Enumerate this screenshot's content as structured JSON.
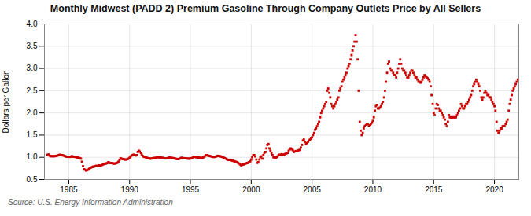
{
  "chart_data": {
    "type": "scatter",
    "title": "Monthly Midwest (PADD 2) Premium Gasoline Through Company Outlets Price by All Sellers",
    "ylabel": "Dollars per Gallon",
    "caption": "Source: U.S. Energy Information Administration",
    "color": "#cc0000",
    "marker": "square",
    "grid": true,
    "xlim": [
      1983,
      2022
    ],
    "ylim": [
      0.5,
      4.0
    ],
    "xticks": [
      1985,
      1990,
      1995,
      2000,
      2005,
      2010,
      2015,
      2020
    ],
    "yticks": [
      0.5,
      {
        "value": 1.0,
        "label": "1.0"
      },
      1.5,
      {
        "value": 2.0,
        "label": "2.0"
      },
      2.5,
      {
        "value": 3.0,
        "label": "3.0"
      },
      3.5,
      {
        "value": 4.0,
        "label": "4.0"
      }
    ],
    "x": [
      1983.25,
      1983.33,
      1983.42,
      1983.5,
      1983.58,
      1983.67,
      1983.75,
      1983.83,
      1983.92,
      1984.0,
      1984.08,
      1984.17,
      1984.25,
      1984.33,
      1984.42,
      1984.5,
      1984.58,
      1984.67,
      1984.75,
      1984.83,
      1984.92,
      1985.0,
      1985.08,
      1985.17,
      1985.25,
      1985.33,
      1985.42,
      1985.5,
      1985.58,
      1985.67,
      1985.75,
      1985.83,
      1985.92,
      1986.0,
      1986.08,
      1986.17,
      1986.25,
      1986.33,
      1986.42,
      1986.5,
      1986.58,
      1986.67,
      1986.75,
      1986.83,
      1986.92,
      1987.0,
      1987.08,
      1987.17,
      1987.25,
      1987.33,
      1987.42,
      1987.5,
      1987.58,
      1987.67,
      1987.75,
      1987.83,
      1987.92,
      1988.0,
      1988.08,
      1988.17,
      1988.25,
      1988.33,
      1988.42,
      1988.5,
      1988.58,
      1988.67,
      1988.75,
      1988.83,
      1988.92,
      1989.0,
      1989.08,
      1989.17,
      1989.25,
      1989.33,
      1989.42,
      1989.5,
      1989.58,
      1989.67,
      1989.75,
      1989.83,
      1989.92,
      1990.0,
      1990.08,
      1990.17,
      1990.25,
      1990.33,
      1990.42,
      1990.5,
      1990.58,
      1990.67,
      1990.75,
      1990.83,
      1990.92,
      1991.0,
      1991.08,
      1991.17,
      1991.25,
      1991.33,
      1991.42,
      1991.5,
      1991.58,
      1991.67,
      1991.75,
      1991.83,
      1991.92,
      1992.0,
      1992.08,
      1992.17,
      1992.25,
      1992.33,
      1992.42,
      1992.5,
      1992.58,
      1992.67,
      1992.75,
      1992.83,
      1992.92,
      1993.0,
      1993.08,
      1993.17,
      1993.25,
      1993.33,
      1993.42,
      1993.5,
      1993.58,
      1993.67,
      1993.75,
      1993.83,
      1993.92,
      1994.0,
      1994.08,
      1994.17,
      1994.25,
      1994.33,
      1994.42,
      1994.5,
      1994.58,
      1994.67,
      1994.75,
      1994.83,
      1994.92,
      1995.0,
      1995.08,
      1995.17,
      1995.25,
      1995.33,
      1995.42,
      1995.5,
      1995.58,
      1995.67,
      1995.75,
      1995.83,
      1995.92,
      1996.0,
      1996.08,
      1996.17,
      1996.25,
      1996.33,
      1996.42,
      1996.5,
      1996.58,
      1996.67,
      1996.75,
      1996.83,
      1996.92,
      1997.0,
      1997.08,
      1997.17,
      1997.25,
      1997.33,
      1997.42,
      1997.5,
      1997.58,
      1997.67,
      1997.75,
      1997.83,
      1997.92,
      1998.0,
      1998.08,
      1998.17,
      1998.25,
      1998.33,
      1998.42,
      1998.5,
      1998.58,
      1998.67,
      1998.75,
      1998.83,
      1998.92,
      1999.0,
      1999.08,
      1999.17,
      1999.25,
      1999.33,
      1999.42,
      1999.5,
      1999.58,
      1999.67,
      1999.75,
      1999.83,
      1999.92,
      2000.0,
      2000.08,
      2000.17,
      2000.25,
      2000.33,
      2000.42,
      2000.5,
      2000.58,
      2000.67,
      2000.75,
      2000.83,
      2000.92,
      2001.0,
      2001.08,
      2001.17,
      2001.25,
      2001.33,
      2001.42,
      2001.5,
      2001.58,
      2001.67,
      2001.75,
      2001.83,
      2001.92,
      2002.0,
      2002.08,
      2002.17,
      2002.25,
      2002.33,
      2002.42,
      2002.5,
      2002.58,
      2002.67,
      2002.75,
      2002.83,
      2002.92,
      2003.0,
      2003.08,
      2003.17,
      2003.25,
      2003.33,
      2003.42,
      2003.5,
      2003.58,
      2003.67,
      2003.75,
      2003.83,
      2003.92,
      2004.0,
      2004.08,
      2004.17,
      2004.25,
      2004.33,
      2004.42,
      2004.5,
      2004.58,
      2004.67,
      2004.75,
      2004.83,
      2004.92,
      2005.0,
      2005.08,
      2005.17,
      2005.25,
      2005.33,
      2005.42,
      2005.5,
      2005.58,
      2005.67,
      2005.75,
      2005.83,
      2005.92,
      2006.0,
      2006.08,
      2006.17,
      2006.25,
      2006.33,
      2006.42,
      2006.5,
      2006.58,
      2006.67,
      2006.75,
      2006.83,
      2006.92,
      2007.0,
      2007.08,
      2007.17,
      2007.25,
      2007.33,
      2007.42,
      2007.5,
      2007.58,
      2007.67,
      2007.75,
      2007.83,
      2007.92,
      2008.0,
      2008.08,
      2008.17,
      2008.25,
      2008.33,
      2008.42,
      2008.5,
      2008.58,
      2008.67,
      2008.75,
      2008.83,
      2008.92,
      2009.0,
      2009.08,
      2009.17,
      2009.25,
      2009.33,
      2009.42,
      2009.5,
      2009.58,
      2009.67,
      2009.75,
      2009.83,
      2009.92,
      2010.0,
      2010.08,
      2010.17,
      2010.25,
      2010.33,
      2010.42,
      2010.5,
      2010.58,
      2010.67,
      2010.75,
      2010.83,
      2010.92,
      2011.0,
      2011.08,
      2011.17,
      2011.25,
      2011.33,
      2011.42,
      2011.5,
      2011.58,
      2011.67,
      2011.75,
      2011.83,
      2011.92,
      2012.0,
      2012.08,
      2012.17,
      2012.25,
      2012.33,
      2012.42,
      2012.5,
      2012.58,
      2012.67,
      2012.75,
      2012.83,
      2012.92,
      2013.0,
      2013.08,
      2013.17,
      2013.25,
      2013.33,
      2013.42,
      2013.5,
      2013.58,
      2013.67,
      2013.75,
      2013.83,
      2013.92,
      2014.0,
      2014.08,
      2014.17,
      2014.25,
      2014.33,
      2014.42,
      2014.5,
      2014.58,
      2014.67,
      2014.75,
      2014.83,
      2014.92,
      2015.0,
      2015.08,
      2015.17,
      2015.25,
      2015.33,
      2015.42,
      2015.5,
      2015.58,
      2015.67,
      2015.75,
      2015.83,
      2015.92,
      2016.0,
      2016.08,
      2016.17,
      2016.25,
      2016.33,
      2016.42,
      2016.5,
      2016.58,
      2016.67,
      2016.75,
      2016.83,
      2016.92,
      2017.0,
      2017.08,
      2017.17,
      2017.25,
      2017.33,
      2017.42,
      2017.5,
      2017.58,
      2017.67,
      2017.75,
      2017.83,
      2017.92,
      2018.0,
      2018.08,
      2018.17,
      2018.25,
      2018.33,
      2018.42,
      2018.5,
      2018.58,
      2018.67,
      2018.75,
      2018.83,
      2018.92,
      2019.0,
      2019.08,
      2019.17,
      2019.25,
      2019.33,
      2019.42,
      2019.5,
      2019.58,
      2019.67,
      2019.75,
      2019.83,
      2019.92,
      2020.0,
      2020.08,
      2020.17,
      2020.25,
      2020.33,
      2020.42,
      2020.5,
      2020.58,
      2020.67,
      2020.75,
      2020.83,
      2020.92,
      2021.0,
      2021.08,
      2021.17,
      2021.25,
      2021.33,
      2021.42,
      2021.5,
      2021.58,
      2021.67,
      2021.75,
      2021.83,
      2021.92
    ],
    "values": [
      1.057,
      1.063,
      1.038,
      1.025,
      1.024,
      1.027,
      1.022,
      1.025,
      1.031,
      1.035,
      1.039,
      1.049,
      1.057,
      1.053,
      1.05,
      1.044,
      1.04,
      1.027,
      1.02,
      1.014,
      1.012,
      1.011,
      1.009,
      1.012,
      1.027,
      1.015,
      1.012,
      1.01,
      1.003,
      0.998,
      0.992,
      0.987,
      0.98,
      0.97,
      0.9,
      0.8,
      0.73,
      0.72,
      0.7,
      0.71,
      0.72,
      0.74,
      0.76,
      0.77,
      0.78,
      0.79,
      0.79,
      0.8,
      0.81,
      0.8,
      0.81,
      0.82,
      0.81,
      0.82,
      0.83,
      0.84,
      0.85,
      0.86,
      0.86,
      0.87,
      0.89,
      0.88,
      0.87,
      0.87,
      0.87,
      0.86,
      0.86,
      0.86,
      0.87,
      0.88,
      0.9,
      0.94,
      0.98,
      0.97,
      0.96,
      0.96,
      0.95,
      0.95,
      0.95,
      0.96,
      0.97,
      0.99,
      1.02,
      1.04,
      1.05,
      1.06,
      1.05,
      1.04,
      1.05,
      1.12,
      1.15,
      1.13,
      1.1,
      1.06,
      1.03,
      1.01,
      1.01,
      1.0,
      0.99,
      0.98,
      0.98,
      0.97,
      0.97,
      0.975,
      0.98,
      0.985,
      0.985,
      0.99,
      1.005,
      1.0,
      1.0,
      1.0,
      0.995,
      0.99,
      0.985,
      0.98,
      0.975,
      0.975,
      0.975,
      0.985,
      0.995,
      0.995,
      0.99,
      0.985,
      0.982,
      0.978,
      0.97,
      0.965,
      0.96,
      0.96,
      0.965,
      0.975,
      0.99,
      0.985,
      0.98,
      0.98,
      0.978,
      0.975,
      0.972,
      0.97,
      0.97,
      0.972,
      0.978,
      0.99,
      1.01,
      1.01,
      1.005,
      1.0,
      0.998,
      0.995,
      0.99,
      0.988,
      0.985,
      0.99,
      1.0,
      1.02,
      1.05,
      1.045,
      1.04,
      1.035,
      1.03,
      1.025,
      1.015,
      1.01,
      1.005,
      1.01,
      1.015,
      1.025,
      1.035,
      1.03,
      1.025,
      1.02,
      1.01,
      1.005,
      0.99,
      0.98,
      0.968,
      0.955,
      0.94,
      0.94,
      0.945,
      0.938,
      0.925,
      0.92,
      0.915,
      0.905,
      0.898,
      0.89,
      0.875,
      0.86,
      0.84,
      0.82,
      0.83,
      0.84,
      0.84,
      0.855,
      0.865,
      0.87,
      0.878,
      0.89,
      0.91,
      0.95,
      1.0,
      1.05,
      1.05,
      1.02,
      0.95,
      0.875,
      0.89,
      0.95,
      1.0,
      1.02,
      0.97,
      1.05,
      1.1,
      1.12,
      1.2,
      1.28,
      1.3,
      1.2,
      1.15,
      1.1,
      1.05,
      1.0,
      0.98,
      0.99,
      1.0,
      1.02,
      1.05,
      1.06,
      1.05,
      1.07,
      1.06,
      1.06,
      1.07,
      1.08,
      1.09,
      1.1,
      1.15,
      1.18,
      1.2,
      1.18,
      1.16,
      1.12,
      1.13,
      1.14,
      1.14,
      1.15,
      1.16,
      1.17,
      1.22,
      1.28,
      1.38,
      1.4,
      1.35,
      1.3,
      1.32,
      1.35,
      1.38,
      1.4,
      1.42,
      1.45,
      1.5,
      1.55,
      1.62,
      1.65,
      1.7,
      1.75,
      1.8,
      1.9,
      2.0,
      2.05,
      2.1,
      2.15,
      2.2,
      2.25,
      2.5,
      2.55,
      2.45,
      2.35,
      2.2,
      2.15,
      2.1,
      2.15,
      2.2,
      2.25,
      2.3,
      2.35,
      2.5,
      2.55,
      2.6,
      2.7,
      2.75,
      2.8,
      2.85,
      2.9,
      3.0,
      3.05,
      3.1,
      3.2,
      3.3,
      3.4,
      3.5,
      3.6,
      3.75,
      3.6,
      3.2,
      2.5,
      1.8,
      1.6,
      1.5,
      1.55,
      1.65,
      1.7,
      1.72,
      1.75,
      1.75,
      1.7,
      1.72,
      1.75,
      1.78,
      1.82,
      1.9,
      2.05,
      2.15,
      2.18,
      2.1,
      2.1,
      2.12,
      2.15,
      2.2,
      2.25,
      2.35,
      2.5,
      2.7,
      2.9,
      3.1,
      3.15,
      3.0,
      2.95,
      2.95,
      2.9,
      2.85,
      2.85,
      2.8,
      2.9,
      3.0,
      3.1,
      3.2,
      3.1,
      3.0,
      2.95,
      2.95,
      2.9,
      2.85,
      2.8,
      2.8,
      2.85,
      2.9,
      2.95,
      2.95,
      2.9,
      2.85,
      2.8,
      2.8,
      2.75,
      2.7,
      2.7,
      2.68,
      2.7,
      2.75,
      2.8,
      2.85,
      2.82,
      2.8,
      2.78,
      2.75,
      2.7,
      2.6,
      2.4,
      2.2,
      2.0,
      1.95,
      2.1,
      2.2,
      2.18,
      2.1,
      2.05,
      2.05,
      2.0,
      1.95,
      1.9,
      1.85,
      1.75,
      1.7,
      1.8,
      1.95,
      1.9,
      1.9,
      1.9,
      1.9,
      1.9,
      1.9,
      1.9,
      1.95,
      2.0,
      2.05,
      2.1,
      2.2,
      2.15,
      2.1,
      2.1,
      2.15,
      2.2,
      2.2,
      2.25,
      2.3,
      2.35,
      2.4,
      2.5,
      2.6,
      2.65,
      2.7,
      2.75,
      2.7,
      2.65,
      2.6,
      2.5,
      2.35,
      2.3,
      2.35,
      2.45,
      2.5,
      2.45,
      2.4,
      2.4,
      2.35,
      2.35,
      2.3,
      2.25,
      2.2,
      2.15,
      2.05,
      1.8,
      1.6,
      1.55,
      1.6,
      1.65,
      1.65,
      1.7,
      1.7,
      1.7,
      1.75,
      1.8,
      1.85,
      2.05,
      2.2,
      2.3,
      2.4,
      2.5,
      2.55,
      2.6,
      2.65,
      2.7,
      2.75
    ]
  }
}
